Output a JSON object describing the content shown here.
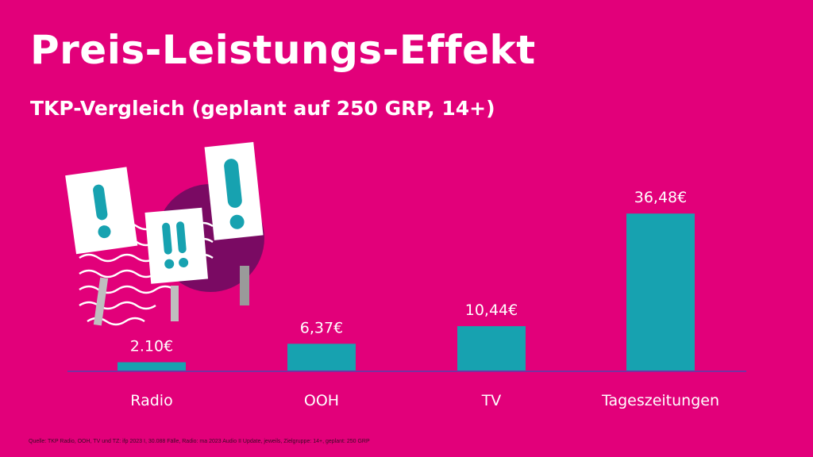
{
  "header": {
    "title": "Preis-Leistungs-Effekt",
    "subtitle": "TKP-Vergleich (geplant auf 250 GRP, 14+)"
  },
  "footer": {
    "source": "Quelle: TKP Radio, OOH, TV und TZ: ifp 2023 I, 30.088 Fälle, Radio: ma 2023 Audio II Update, jeweils, Zielgruppe: 14+, geplant: 250 GRP"
  },
  "colors": {
    "background": "#e2007a",
    "bar": "#17a2b0",
    "text": "#ffffff",
    "circle": "#7a0a63"
  },
  "illustration": {
    "icon": "exclamation-signs-icon"
  },
  "chart_data": {
    "type": "bar",
    "categories": [
      "Radio",
      "OOH",
      "TV",
      "Tageszeitungen"
    ],
    "values": [
      2.1,
      6.37,
      10.44,
      36.48
    ],
    "value_labels": [
      "2.10€",
      "6,37€",
      "10,44€",
      "36,48€"
    ],
    "ylim": [
      0,
      40
    ],
    "grid": false,
    "legend": "none"
  }
}
